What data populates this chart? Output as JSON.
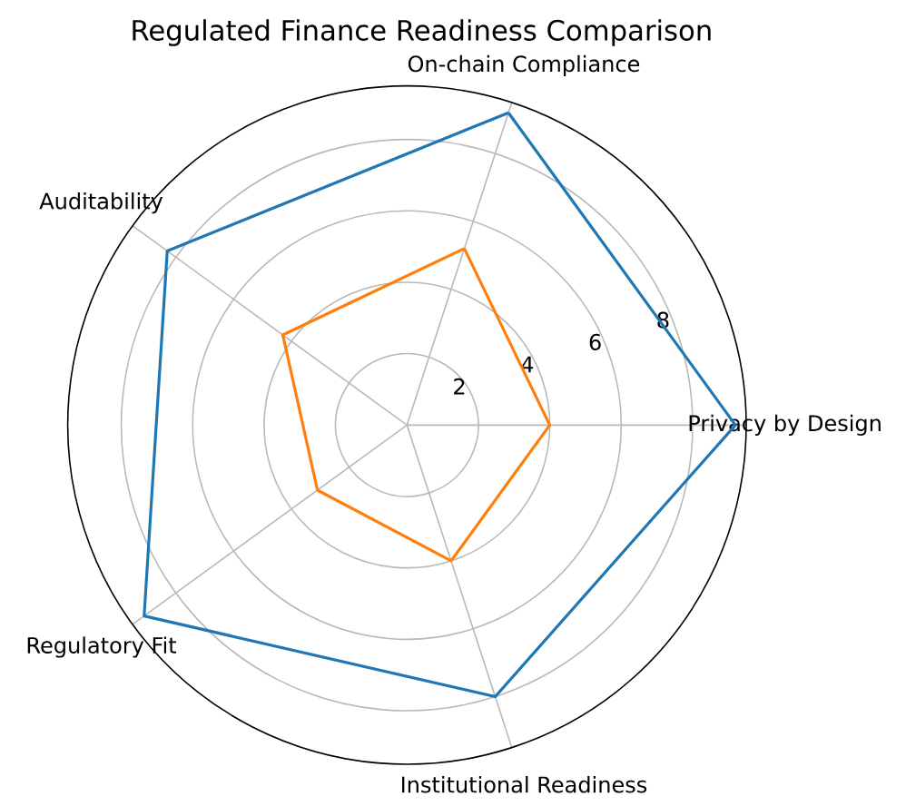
{
  "chart_data": {
    "type": "radar",
    "title": "Regulated Finance Readiness Comparison",
    "categories": [
      "On-chain Compliance",
      "Privacy by Design",
      "Institutional Readiness",
      "Regulatory Fit",
      "Auditability"
    ],
    "series": [
      {
        "color": "#1f77b4",
        "values": [
          9.2,
          9.2,
          8.0,
          9.1,
          8.3
        ]
      },
      {
        "color": "#ff7f0e",
        "values": [
          5.2,
          4.0,
          4.0,
          3.1,
          4.3
        ]
      }
    ],
    "ylim": [
      0,
      9.5
    ],
    "yticks": [
      2,
      4,
      6,
      8
    ],
    "grid": true,
    "marker": "none",
    "line_style": "solid"
  }
}
